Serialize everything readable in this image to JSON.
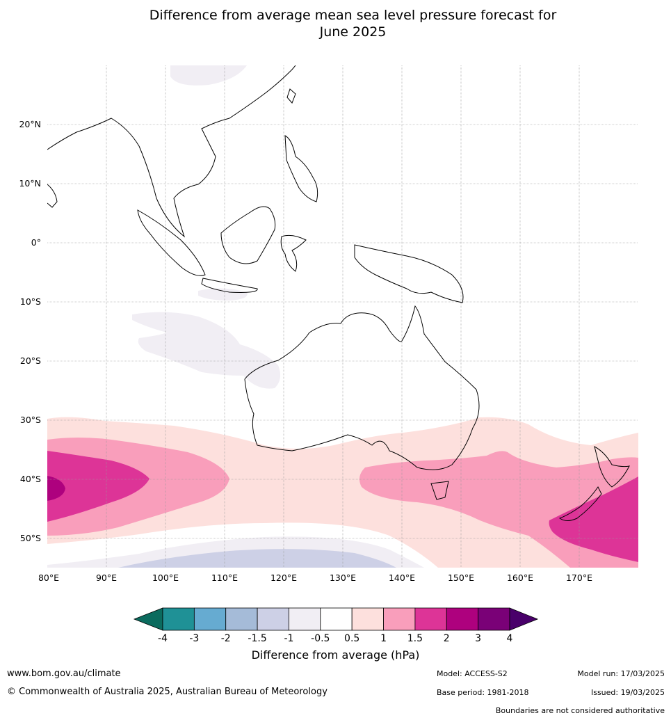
{
  "title_line1": "Difference from average mean sea level pressure forecast for",
  "title_line2": "June 2025",
  "lon_labels": [
    "80°E",
    "90°E",
    "100°E",
    "110°E",
    "120°E",
    "130°E",
    "140°E",
    "150°E",
    "160°E",
    "170°E"
  ],
  "lat_labels": [
    "20°N",
    "10°N",
    "0°",
    "10°S",
    "20°S",
    "30°S",
    "40°S",
    "50°S"
  ],
  "colorbar": {
    "title": "Difference from average (hPa)",
    "ticks": [
      "-4",
      "-3",
      "-2",
      "-1.5",
      "-1",
      "-0.5",
      "0.5",
      "1",
      "1.5",
      "2",
      "3",
      "4"
    ],
    "colors": [
      "#0b6b5e",
      "#1f9196",
      "#66abd1",
      "#a5bbd8",
      "#cdd0e6",
      "#f1eef4",
      "#ffffff",
      "#fde0dd",
      "#f99ebb",
      "#dd3497",
      "#ae017e",
      "#7a0177",
      "#49006a"
    ]
  },
  "footer": {
    "url": "www.bom.gov.au/climate",
    "copyright": "© Commonwealth of Australia 2025, Australian Bureau of Meteorology",
    "model": "Model: ACCESS-S2",
    "base_period": "Base period: 1981-2018",
    "model_run": "Model run: 17/03/2025",
    "issued": "Issued: 19/03/2025",
    "disclaimer": "Boundaries are not considered authoritative"
  }
}
